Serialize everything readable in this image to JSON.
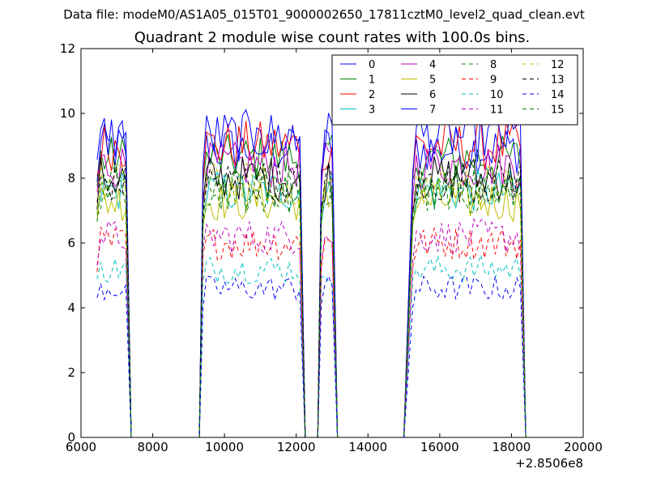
{
  "suptitle": "Data file: modeM0/AS1A05_015T01_9000002650_17811cztM0_level2_quad_clean.evt",
  "chart_data": {
    "type": "line",
    "title": "Quadrant 2 module wise count rates with 100.0s bins.",
    "xlabel": "",
    "ylabel": "",
    "x_offset_label": "+2.8506e8",
    "xlim": [
      6000,
      20000
    ],
    "ylim": [
      0,
      12
    ],
    "xticks": [
      6000,
      8000,
      10000,
      12000,
      14000,
      16000,
      18000,
      20000
    ],
    "yticks": [
      0,
      2,
      4,
      6,
      8,
      10,
      12
    ],
    "grid": false,
    "legend_position": "top-right",
    "legend_columns": 4,
    "data_segments": [
      {
        "start": 6450,
        "end": 7300
      },
      {
        "start": 9400,
        "end": 12150
      },
      {
        "start": 12700,
        "end": 13050
      },
      {
        "start": 15250,
        "end": 18300
      }
    ],
    "gap_x": [
      7400,
      7500,
      8000,
      8500,
      9000,
      9300,
      12280,
      12600,
      13150,
      13500,
      14000,
      14500,
      15000
    ],
    "series": [
      {
        "name": "0",
        "color": "#0000ff",
        "style": "solid",
        "level": 8.9
      },
      {
        "name": "1",
        "color": "#008000",
        "style": "solid",
        "level": 8.6
      },
      {
        "name": "2",
        "color": "#ff0000",
        "style": "solid",
        "level": 9.0
      },
      {
        "name": "3",
        "color": "#00bfbf",
        "style": "solid",
        "level": 7.6
      },
      {
        "name": "4",
        "color": "#bf00bf",
        "style": "solid",
        "level": 8.4
      },
      {
        "name": "5",
        "color": "#bfbf00",
        "style": "solid",
        "level": 7.3
      },
      {
        "name": "6",
        "color": "#000000",
        "style": "solid",
        "level": 8.0
      },
      {
        "name": "7",
        "color": "#0000ff",
        "style": "solid",
        "level": 9.3
      },
      {
        "name": "8",
        "color": "#008000",
        "style": "dashed",
        "level": 7.5
      },
      {
        "name": "9",
        "color": "#ff0000",
        "style": "dashed",
        "level": 6.0
      },
      {
        "name": "10",
        "color": "#00bfbf",
        "style": "dashed",
        "level": 5.2
      },
      {
        "name": "11",
        "color": "#bf00bf",
        "style": "dashed",
        "level": 6.2
      },
      {
        "name": "12",
        "color": "#bfbf00",
        "style": "dashed",
        "level": 7.8
      },
      {
        "name": "13",
        "color": "#000000",
        "style": "dashed",
        "level": 7.9
      },
      {
        "name": "14",
        "color": "#0000ff",
        "style": "dashed",
        "level": 4.6
      },
      {
        "name": "15",
        "color": "#008000",
        "style": "dashed",
        "level": 7.7
      }
    ]
  }
}
